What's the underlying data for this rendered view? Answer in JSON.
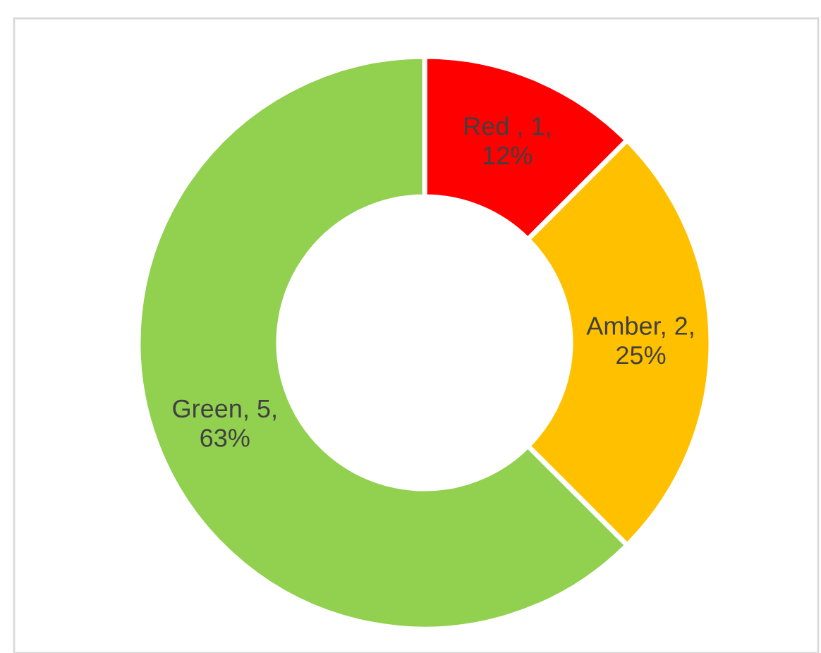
{
  "chart_data": {
    "type": "donut",
    "categories": [
      "Red ",
      "Amber",
      "Green"
    ],
    "values": [
      1,
      2,
      5
    ],
    "colors": [
      "#ff0000",
      "#ffc000",
      "#92d050"
    ],
    "value_labels": [
      "1, 12%",
      "2, 25%",
      "5, 63%"
    ],
    "data_labels": true,
    "legend": false
  }
}
